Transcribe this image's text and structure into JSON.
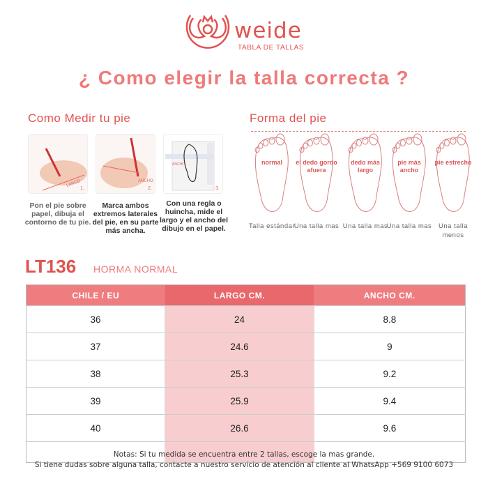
{
  "header": {
    "brand": "weide",
    "subtitle": "TABLA DE TALLAS",
    "title": "¿ Como elegir la talla correcta ?",
    "brand_color": "#e0534f"
  },
  "measure": {
    "title": "Como Medir tu pie",
    "steps": [
      {
        "num": "1.",
        "tag": "LARGO",
        "caption": "Pon el pie sobre papel, dibuja el contorno de tu pie."
      },
      {
        "num": "2.",
        "tag": "ANCHO",
        "caption": "Marca ambos extremos laterales del pie, en su parte más ancha."
      },
      {
        "num": "3.",
        "tag": "ANCHO",
        "tag2": "LARGO",
        "caption": "Con una regla o huincha, mide el largo y el ancho del dibujo en el papel."
      }
    ]
  },
  "shape": {
    "title": "Forma del pie",
    "feet": [
      {
        "label": "normal",
        "advice": "Talla estándar"
      },
      {
        "label": "el dedo gordo afuera",
        "advice": "Una talla mas"
      },
      {
        "label": "dedo más largo",
        "advice": "Una talla mas"
      },
      {
        "label": "pie más ancho",
        "advice": "Una talla mas"
      },
      {
        "label": "pie estrecho",
        "advice": "Una talla menos"
      }
    ]
  },
  "product": {
    "model": "LT136",
    "fit": "HORMA NORMAL"
  },
  "table": {
    "headers": [
      "CHILE / EU",
      "LARGO CM.",
      "ANCHO CM."
    ],
    "rows": [
      [
        "36",
        "24",
        "8.8"
      ],
      [
        "37",
        "24.6",
        "9"
      ],
      [
        "38",
        "25.3",
        "9.2"
      ],
      [
        "39",
        "25.9",
        "9.4"
      ],
      [
        "40",
        "26.6",
        "9.6"
      ],
      [
        "",
        "",
        ""
      ]
    ]
  },
  "notes": [
    "Notas: Si tu medida se encuentra entre 2 tallas, escoge la mas grande.",
    "Si tiene dudas sobre alguna talla, contacte a nuestro servicio de atención al cliente al WhatsApp +569 9100 6073"
  ]
}
